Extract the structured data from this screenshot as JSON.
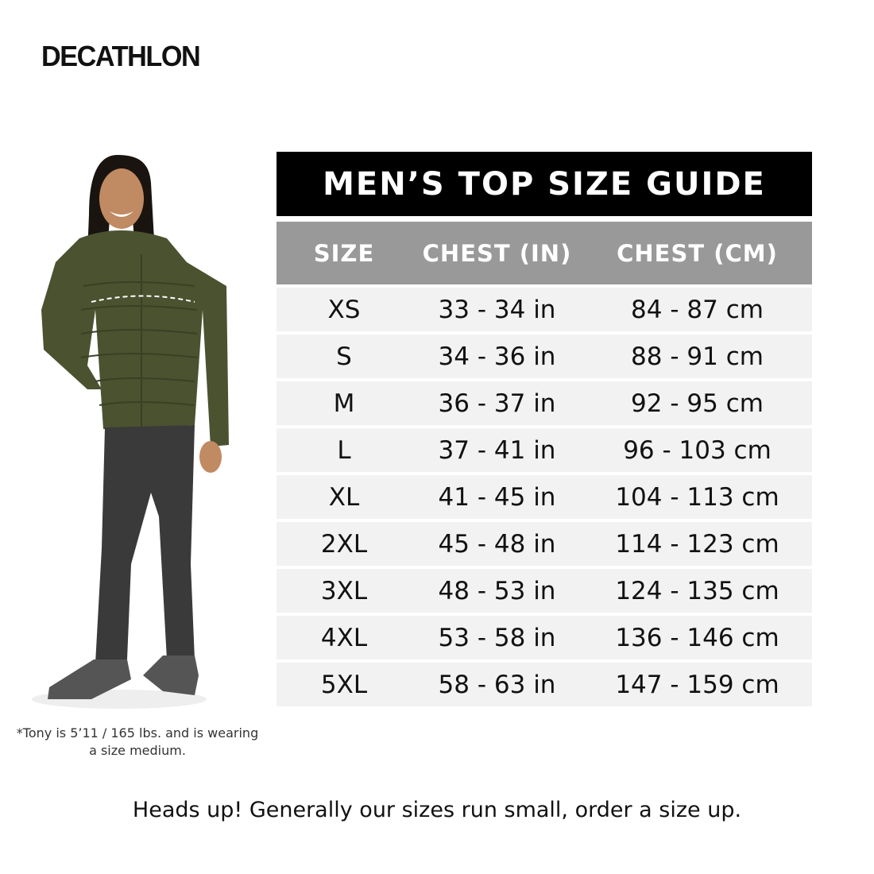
{
  "brand": "DECATHLON",
  "model_caption": "*Tony is 5’11 / 165 lbs. and is wearing a size medium.",
  "table": {
    "title": "MEN’S TOP SIZE GUIDE",
    "columns": [
      "SIZE",
      "CHEST (IN)",
      "CHEST (CM)"
    ],
    "rows": [
      [
        "XS",
        "33 - 34 in",
        "84 - 87 cm"
      ],
      [
        "S",
        "34 - 36 in",
        "88 - 91 cm"
      ],
      [
        "M",
        "36 - 37 in",
        "92 - 95 cm"
      ],
      [
        "L",
        "37 - 41 in",
        "96 - 103 cm"
      ],
      [
        "XL",
        "41 - 45 in",
        "104 - 113 cm"
      ],
      [
        "2XL",
        "45 - 48 in",
        "114 - 123 cm"
      ],
      [
        "3XL",
        "48 - 53 in",
        "124 - 135 cm"
      ],
      [
        "4XL",
        "53 - 58 in",
        "136 - 146 cm"
      ],
      [
        "5XL",
        "58 - 63 in",
        "147 - 159 cm"
      ]
    ]
  },
  "footer_note": "Heads up! Generally our sizes run small, order a size up.",
  "colors": {
    "title_bg": "#000000",
    "header_bg": "#999999",
    "row_bg": "#f2f2f2",
    "jacket": "#4a5230",
    "pants": "#3a3a3a"
  }
}
